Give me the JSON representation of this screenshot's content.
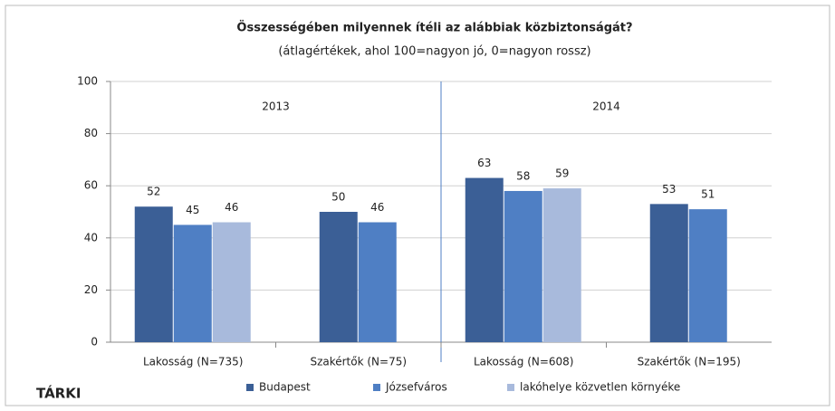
{
  "chart_data": {
    "type": "bar",
    "title": "Összességében milyennek ítéli az alábbiak közbiztonságát?",
    "subtitle": "(átlagértékek, ahol 100=nagyon jó, 0=nagyon rossz)",
    "categories": [
      "Lakosság (N=735)",
      "Szakértők (N=75)",
      "Lakosság (N=608)",
      "Szakértők (N=195)"
    ],
    "series": [
      {
        "name": "Budapest",
        "color": "#3b5f96",
        "values": [
          52,
          50,
          63,
          53
        ]
      },
      {
        "name": "Józsefváros",
        "color": "#4f7fc4",
        "values": [
          45,
          46,
          58,
          51
        ]
      },
      {
        "name": "lakóhelye közvetlen környéke",
        "color": "#a8badc",
        "values": [
          46,
          null,
          59,
          null
        ]
      }
    ],
    "annotations": [
      "2013",
      "2014"
    ],
    "logo": "TÁRKI",
    "ylim": [
      0,
      100
    ],
    "yticks": [
      0,
      20,
      40,
      60,
      80,
      100
    ],
    "grid": true,
    "legend": "bottom"
  }
}
